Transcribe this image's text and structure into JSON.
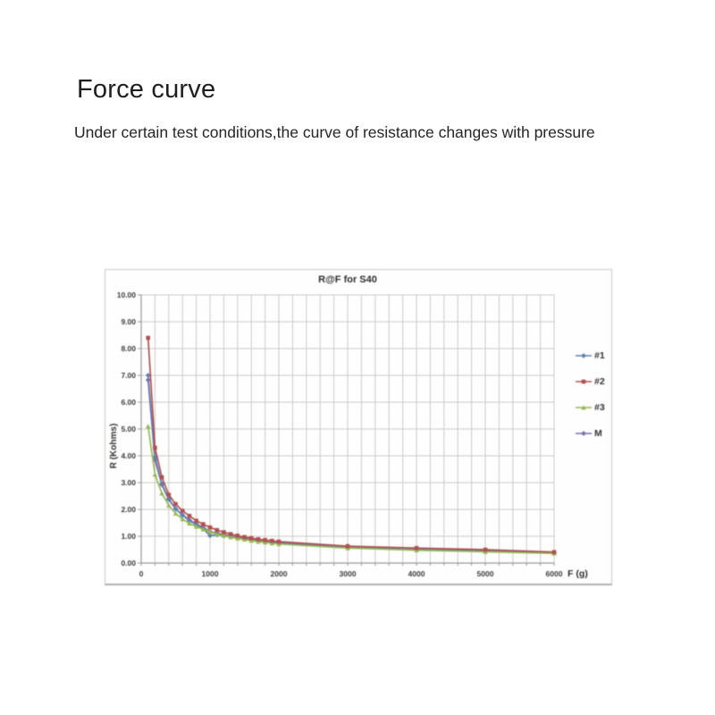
{
  "page": {
    "title": "Force curve",
    "subtitle": "Under certain test conditions,the curve of resistance changes with pressure"
  },
  "chart_data": {
    "type": "line",
    "title": "R@F for S40",
    "xlabel": "F (g)",
    "ylabel": "R (Kohms)",
    "xlim": [
      0,
      6000
    ],
    "ylim": [
      0,
      10
    ],
    "grid": true,
    "legend_position": "right",
    "x_major_ticks": [
      0,
      1000,
      2000,
      3000,
      4000,
      5000,
      6000
    ],
    "x_minor_step": 200,
    "y_tick_step": 1,
    "y_tick_decimals": 2,
    "x": [
      100,
      200,
      300,
      400,
      500,
      600,
      700,
      800,
      900,
      1000,
      1100,
      1200,
      1300,
      1400,
      1500,
      1600,
      1700,
      1800,
      1900,
      2000,
      3000,
      4000,
      5000,
      6000
    ],
    "series": [
      {
        "name": "#1",
        "color": "#5b80b6",
        "marker": "diamond",
        "values": [
          7.0,
          3.95,
          2.95,
          2.4,
          2.02,
          1.78,
          1.58,
          1.44,
          1.28,
          1.02,
          1.05,
          1.02,
          0.98,
          0.94,
          0.9,
          0.87,
          0.84,
          0.81,
          0.78,
          0.75,
          0.59,
          0.51,
          0.46,
          0.38
        ]
      },
      {
        "name": "#2",
        "color": "#b2504e",
        "marker": "square",
        "values": [
          8.4,
          4.3,
          3.2,
          2.55,
          2.2,
          1.95,
          1.76,
          1.58,
          1.45,
          1.33,
          1.23,
          1.15,
          1.08,
          1.02,
          0.97,
          0.93,
          0.89,
          0.86,
          0.83,
          0.8,
          0.63,
          0.56,
          0.5,
          0.41
        ]
      },
      {
        "name": "#3",
        "color": "#96b854",
        "marker": "triangle",
        "values": [
          5.1,
          3.3,
          2.6,
          2.15,
          1.85,
          1.64,
          1.48,
          1.36,
          1.26,
          1.16,
          1.08,
          1.02,
          0.97,
          0.92,
          0.88,
          0.84,
          0.8,
          0.77,
          0.74,
          0.71,
          0.56,
          0.48,
          0.42,
          0.36
        ]
      },
      {
        "name": "M",
        "color": "#7e6ba8",
        "marker": "diamond",
        "values": [
          6.83,
          3.85,
          2.92,
          2.37,
          2.02,
          1.79,
          1.61,
          1.46,
          1.33,
          1.17,
          1.12,
          1.06,
          1.01,
          0.96,
          0.92,
          0.88,
          0.84,
          0.81,
          0.78,
          0.75,
          0.59,
          0.52,
          0.46,
          0.38
        ]
      }
    ],
    "draw_order": [
      3,
      0,
      2,
      1
    ],
    "colors": {
      "grid": "#cbc9c7",
      "axis": "#9a9896",
      "tick_text": "#3d3b39"
    }
  }
}
